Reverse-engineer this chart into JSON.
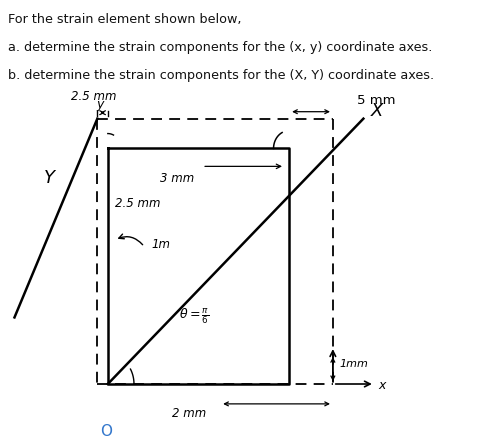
{
  "title_lines": [
    "For the strain element shown below,",
    "a. determine the strain components for the (x, y) coordinate axes.",
    "b. determine the strain components for the (X, Y) coordinate axes."
  ],
  "bg_color": "#ffffff",
  "text_color": "#111111",
  "label_2p5mm_top": "2.5 mm",
  "label_5mm": "5 mm",
  "label_3mm": "3 mm",
  "label_2p5mm_side": "2.5 mm",
  "label_1m": "1m",
  "label_1mm_right": "1mm",
  "label_2mm": "2 mm",
  "label_O": "O",
  "label_X": "X",
  "label_Y": "Y",
  "label_y_axis": "y",
  "label_x_axis": "x",
  "theta_label": "$\\theta = \\frac{\\pi}{6}$"
}
